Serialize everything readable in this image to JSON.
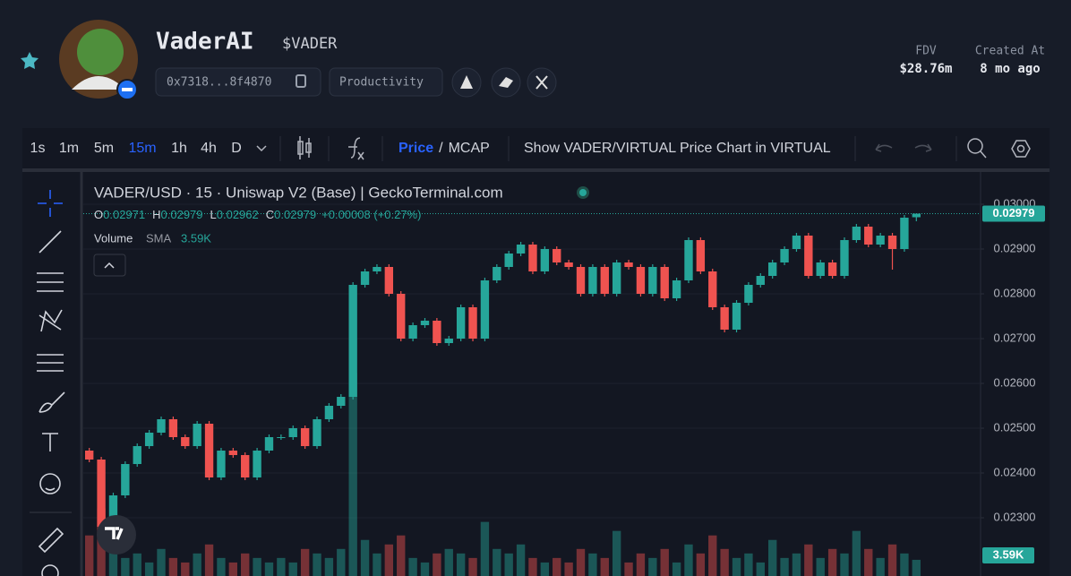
{
  "header": {
    "name": "VaderAI",
    "ticker": "$VADER",
    "address": "0x7318...8f4870",
    "category": "Productivity",
    "stats": [
      {
        "label": "FDV",
        "value": "$28.76m"
      },
      {
        "label": "Created At",
        "value": "8 mo ago"
      }
    ]
  },
  "toolbar": {
    "intervals": [
      "1s",
      "1m",
      "5m",
      "15m",
      "1h",
      "4h",
      "D"
    ],
    "active_interval_index": 3,
    "price_toggle": [
      "Price",
      "MCAP"
    ],
    "price_toggle_separator": "/",
    "active_toggle_index": 0,
    "pair_button": "Show VADER/VIRTUAL Price Chart in VIRTUAL"
  },
  "chart_data": {
    "type": "candlestick",
    "title": "VADER/USD · 15 · Uniswap V2 (Base) | GeckoTerminal.com",
    "ohlc_legend": [
      {
        "key": "O",
        "value": "0.02971"
      },
      {
        "key": "H",
        "value": "0.02979"
      },
      {
        "key": "L",
        "value": "0.02962"
      },
      {
        "key": "C",
        "value": "0.02979"
      }
    ],
    "change": "+0.00008 (+0.27%)",
    "close_label": "0.02979",
    "up_color": "#26a69a",
    "down_color": "#ef5350",
    "grid": true,
    "ylim": [
      0.0217,
      0.03076
    ],
    "yticks": [
      {
        "value": 0.03,
        "label": "0.03000"
      },
      {
        "value": 0.029,
        "label": "0.02900"
      },
      {
        "value": 0.028,
        "label": "0.02800"
      },
      {
        "value": 0.027,
        "label": "0.02700"
      },
      {
        "value": 0.026,
        "label": "0.02600"
      },
      {
        "value": 0.025,
        "label": "0.02500"
      },
      {
        "value": 0.024,
        "label": "0.02400"
      },
      {
        "value": 0.023,
        "label": "0.02300"
      }
    ],
    "open": [
      0.0245,
      0.0243,
      0.0228,
      0.0235,
      0.0242,
      0.0246,
      0.0249,
      0.0252,
      0.0248,
      0.0246,
      0.0251,
      0.0239,
      0.0245,
      0.0244,
      0.0239,
      0.0245,
      0.0248,
      0.0248,
      0.025,
      0.0246,
      0.0252,
      0.0255,
      0.0257,
      0.0282,
      0.0285,
      0.0286,
      0.028,
      0.027,
      0.0273,
      0.0274,
      0.0269,
      0.027,
      0.0277,
      0.027,
      0.0283,
      0.0286,
      0.0289,
      0.0291,
      0.0285,
      0.029,
      0.0287,
      0.0286,
      0.028,
      0.0286,
      0.028,
      0.0287,
      0.0286,
      0.028,
      0.0286,
      0.0279,
      0.0283,
      0.0292,
      0.0285,
      0.0277,
      0.0272,
      0.0278,
      0.0282,
      0.0284,
      0.0287,
      0.029,
      0.0293,
      0.0284,
      0.0287,
      0.0284,
      0.0292,
      0.0295,
      0.0291,
      0.0293,
      0.029,
      0.02971
    ],
    "high": [
      0.02456,
      0.02436,
      0.02356,
      0.02426,
      0.02466,
      0.02496,
      0.02526,
      0.02526,
      0.02486,
      0.02516,
      0.02516,
      0.02456,
      0.02456,
      0.02446,
      0.02456,
      0.02486,
      0.02486,
      0.02506,
      0.02506,
      0.02526,
      0.02556,
      0.02576,
      0.02826,
      0.02856,
      0.02866,
      0.02866,
      0.02806,
      0.02736,
      0.02746,
      0.02746,
      0.02706,
      0.02776,
      0.02776,
      0.02836,
      0.02866,
      0.02896,
      0.02916,
      0.02916,
      0.02906,
      0.02906,
      0.02876,
      0.02866,
      0.02866,
      0.02866,
      0.02876,
      0.02876,
      0.02866,
      0.02866,
      0.02866,
      0.02836,
      0.02926,
      0.02926,
      0.02856,
      0.02776,
      0.02786,
      0.02826,
      0.02846,
      0.02876,
      0.02906,
      0.02936,
      0.02936,
      0.02876,
      0.02876,
      0.02926,
      0.02956,
      0.02956,
      0.02936,
      0.02936,
      0.02976,
      0.02979
    ],
    "low": [
      0.02424,
      0.0227,
      0.02274,
      0.02344,
      0.02414,
      0.02454,
      0.02484,
      0.02474,
      0.02454,
      0.02454,
      0.02384,
      0.02384,
      0.02434,
      0.02384,
      0.02384,
      0.02444,
      0.02474,
      0.02474,
      0.02454,
      0.02454,
      0.02514,
      0.02544,
      0.02564,
      0.02814,
      0.02844,
      0.02794,
      0.02694,
      0.02694,
      0.02724,
      0.02684,
      0.02684,
      0.02694,
      0.02694,
      0.02694,
      0.02824,
      0.02854,
      0.02884,
      0.02844,
      0.02844,
      0.02864,
      0.02854,
      0.02794,
      0.02794,
      0.02794,
      0.02794,
      0.02854,
      0.02794,
      0.02794,
      0.02784,
      0.02784,
      0.02824,
      0.02844,
      0.02764,
      0.02714,
      0.02714,
      0.02774,
      0.02814,
      0.02834,
      0.02864,
      0.02894,
      0.02834,
      0.02834,
      0.02834,
      0.02834,
      0.02914,
      0.02904,
      0.02904,
      0.02854,
      0.02894,
      0.02962
    ],
    "close": [
      0.0243,
      0.0228,
      0.0235,
      0.0242,
      0.0246,
      0.0249,
      0.0252,
      0.0248,
      0.0246,
      0.0251,
      0.0239,
      0.0245,
      0.0244,
      0.0239,
      0.0245,
      0.0248,
      0.0248,
      0.025,
      0.0246,
      0.0252,
      0.0255,
      0.0257,
      0.0282,
      0.0285,
      0.0286,
      0.028,
      0.027,
      0.0273,
      0.0274,
      0.0269,
      0.027,
      0.0277,
      0.027,
      0.0283,
      0.0286,
      0.0289,
      0.0291,
      0.0285,
      0.029,
      0.0287,
      0.0286,
      0.028,
      0.0286,
      0.028,
      0.0287,
      0.0286,
      0.028,
      0.0286,
      0.0279,
      0.0283,
      0.0292,
      0.0285,
      0.0277,
      0.0272,
      0.0278,
      0.0282,
      0.0284,
      0.0287,
      0.029,
      0.0293,
      0.0284,
      0.0287,
      0.0284,
      0.0292,
      0.0295,
      0.0291,
      0.0293,
      0.029,
      0.0297,
      0.02979
    ],
    "volume": {
      "name": "Volume",
      "indicator": "SMA",
      "label": "3.59K",
      "ylim": [
        0,
        90000
      ],
      "values": [
        9000,
        15000,
        6000,
        4000,
        5000,
        3000,
        6000,
        4000,
        3000,
        5000,
        7000,
        4000,
        3000,
        5000,
        4000,
        3000,
        4000,
        3000,
        6000,
        5000,
        4000,
        6000,
        45000,
        8000,
        5000,
        7000,
        9000,
        4000,
        3000,
        5000,
        6000,
        5000,
        4000,
        12000,
        6000,
        5000,
        7000,
        4000,
        3000,
        4000,
        3000,
        6000,
        5000,
        4000,
        10000,
        3000,
        5000,
        4000,
        6000,
        3000,
        7000,
        5000,
        9000,
        6000,
        4000,
        5000,
        3000,
        8000,
        4000,
        5000,
        7000,
        4000,
        6000,
        5000,
        10000,
        6000,
        4000,
        7000,
        5000,
        3590
      ]
    }
  }
}
